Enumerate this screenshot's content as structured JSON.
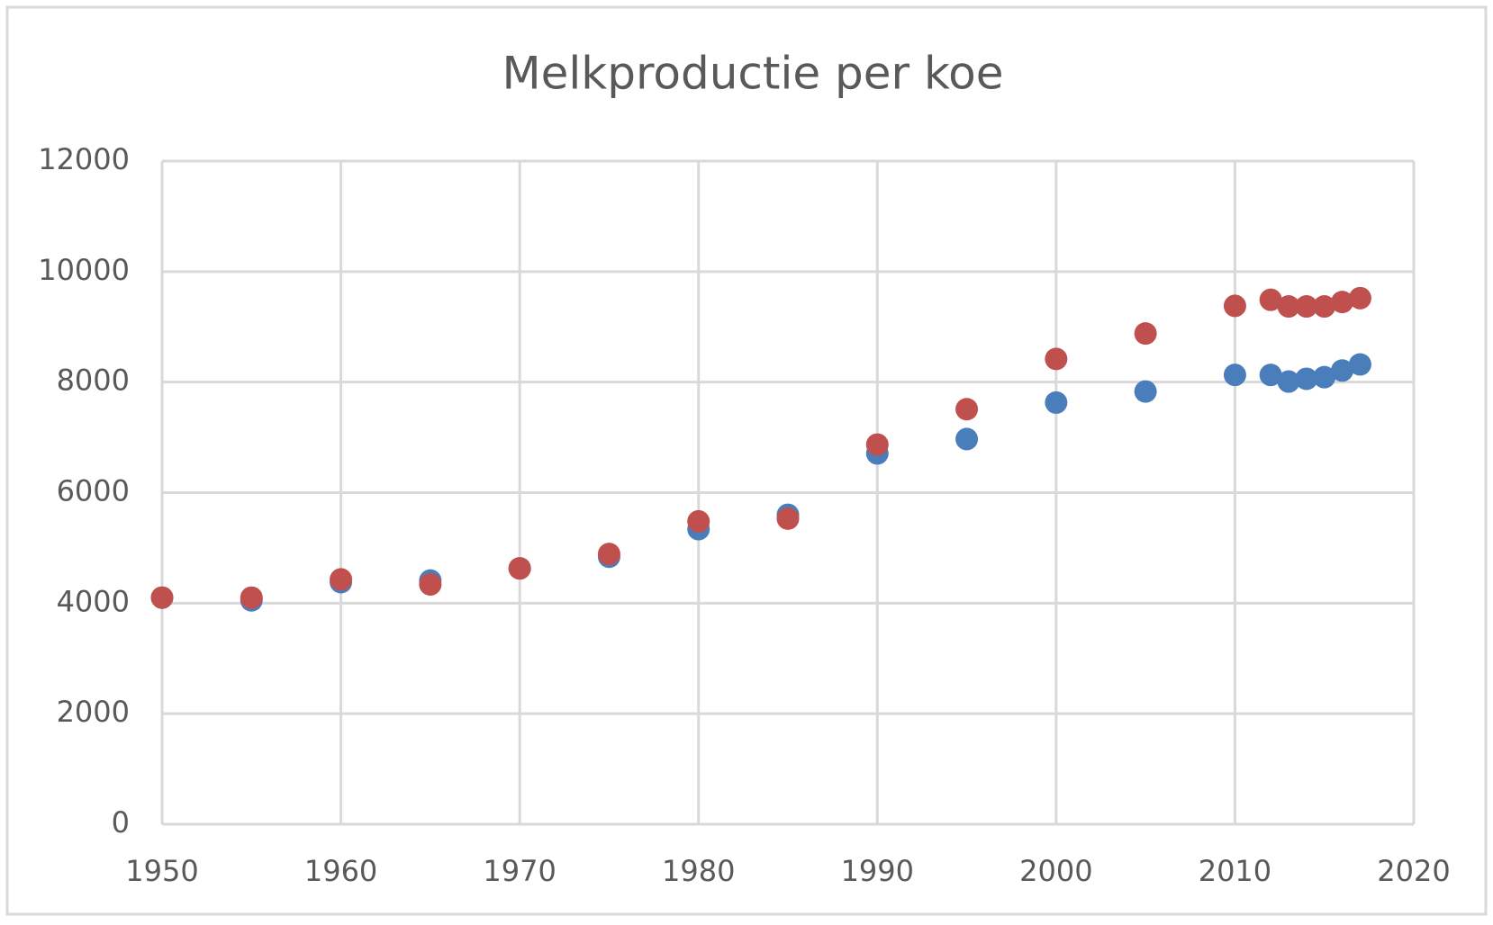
{
  "chart_data": {
    "type": "scatter",
    "title": "Melkproductie per koe",
    "x": [
      1950,
      1955,
      1960,
      1965,
      1970,
      1975,
      1980,
      1985,
      1990,
      1995,
      2000,
      2005,
      2010,
      2012,
      2013,
      2014,
      2015,
      2016,
      2017
    ],
    "series": [
      {
        "color": "#4a7ebb",
        "values": [
          4100,
          4050,
          4380,
          4410,
          4630,
          4840,
          5340,
          5600,
          6710,
          6970,
          7630,
          7830,
          8130,
          8130,
          8010,
          8060,
          8090,
          8210,
          8320
        ]
      },
      {
        "color": "#c0504d",
        "values": [
          4100,
          4100,
          4430,
          4340,
          4630,
          4890,
          5480,
          5530,
          6870,
          7510,
          8420,
          8880,
          9380,
          9490,
          9370,
          9370,
          9370,
          9450,
          9520
        ]
      }
    ],
    "xlim": [
      1950,
      2020
    ],
    "xticks": [
      1950,
      1960,
      1970,
      1980,
      1990,
      2000,
      2010,
      2020
    ],
    "ylim": [
      0,
      12000
    ],
    "yticks": [
      0,
      2000,
      4000,
      6000,
      8000,
      10000,
      12000
    ],
    "grid": true
  }
}
